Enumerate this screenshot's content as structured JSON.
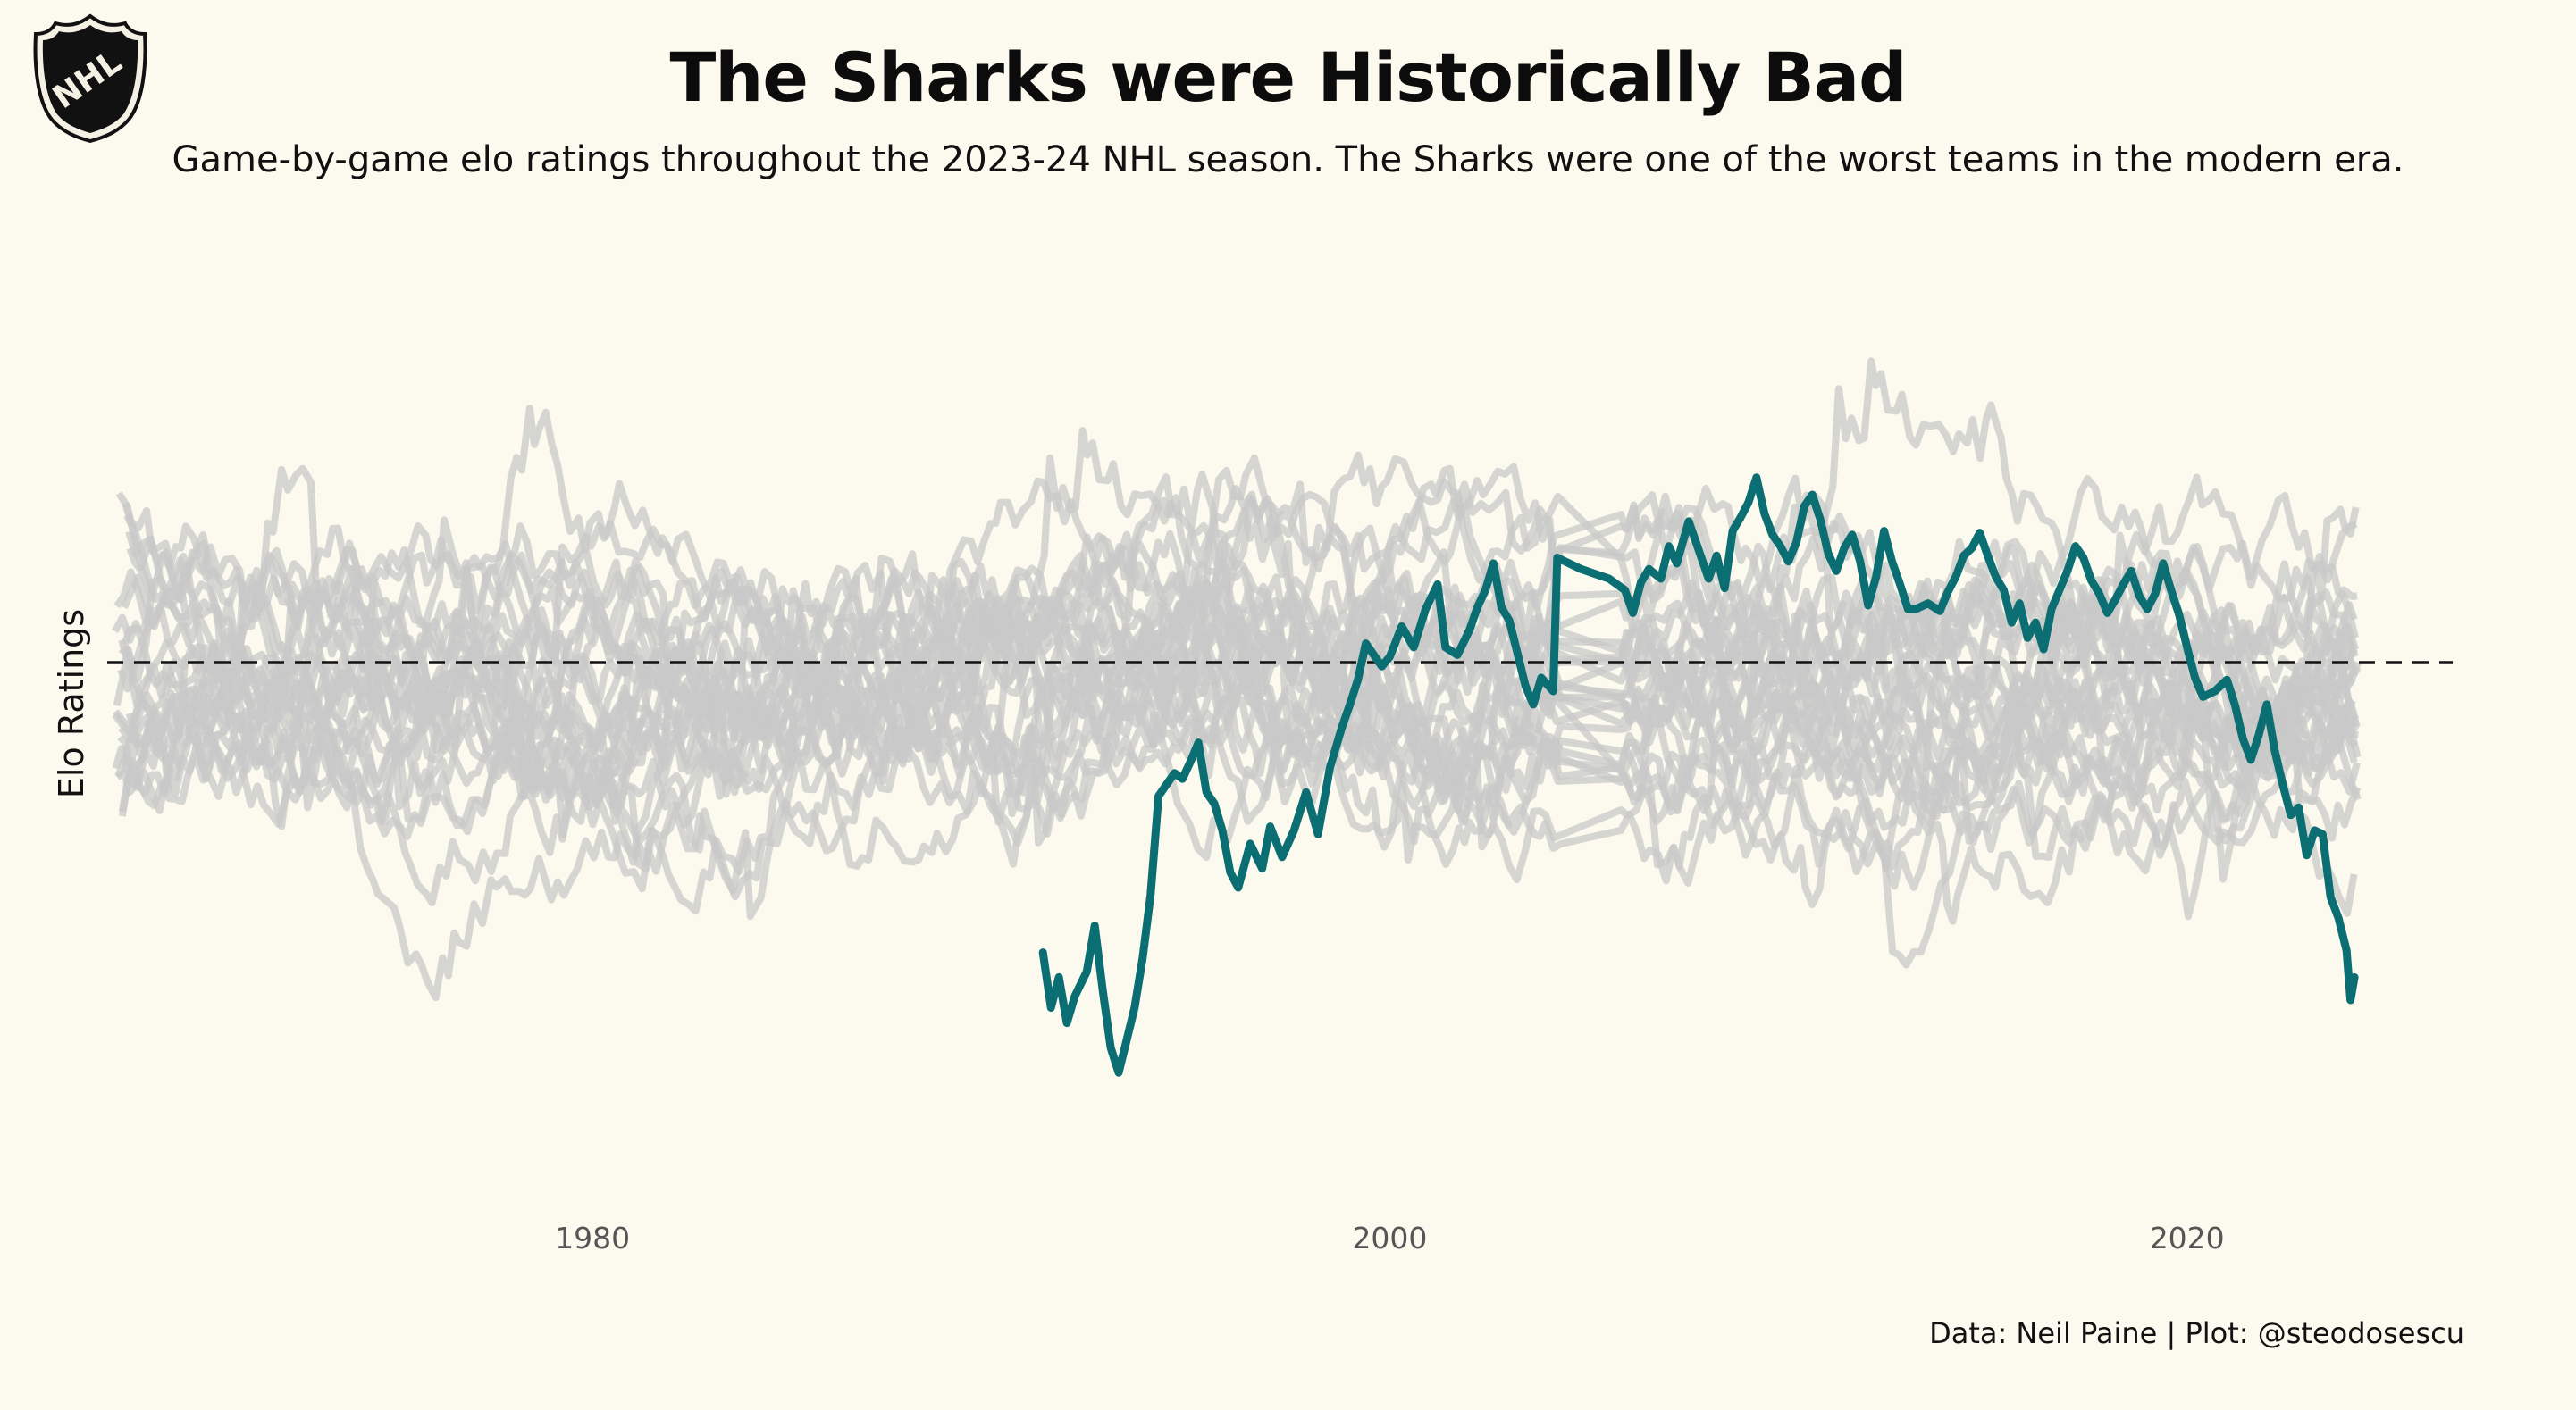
{
  "header": {
    "title": "The Sharks were Historically Bad",
    "subtitle": "Game-by-game elo ratings throughout the 2023-24 NHL season. The Sharks were one of the worst teams in the modern era.",
    "logo_icon": "nhl-shield-icon",
    "logo_text": "NHL"
  },
  "caption": "Data: Neil Paine | Plot: @steodosescu",
  "colors": {
    "background": "#fcf9ef",
    "highlight": "#0b6e73",
    "other_teams": "#c8c8c8",
    "reference_line": "#111111"
  },
  "chart_data": {
    "type": "line",
    "title": "The Sharks were Historically Bad",
    "xlabel": "",
    "ylabel": "Elo Ratings",
    "xlim": [
      1968.5,
      2027
    ],
    "ylim": [
      1220,
      1735
    ],
    "x_ticks": [
      "1980",
      "2000",
      "2020"
    ],
    "x_tick_values": [
      1980,
      2000,
      2020
    ],
    "y_ticks_visible": false,
    "grid": false,
    "reference_line": {
      "y": 1500,
      "style": "dashed"
    },
    "highlight_series": {
      "name": "San Jose Sharks",
      "points": [
        [
          1991.3,
          1348
        ],
        [
          1991.5,
          1319
        ],
        [
          1991.7,
          1335
        ],
        [
          1991.9,
          1311
        ],
        [
          1992.1,
          1325
        ],
        [
          1992.4,
          1338
        ],
        [
          1992.6,
          1362
        ],
        [
          1992.8,
          1328
        ],
        [
          1993.0,
          1298
        ],
        [
          1993.2,
          1285
        ],
        [
          1993.4,
          1302
        ],
        [
          1993.6,
          1319
        ],
        [
          1993.8,
          1345
        ],
        [
          1994.0,
          1378
        ],
        [
          1994.2,
          1430
        ],
        [
          1994.4,
          1436
        ],
        [
          1994.6,
          1442
        ],
        [
          1994.8,
          1439
        ],
        [
          1995.0,
          1448
        ],
        [
          1995.2,
          1458
        ],
        [
          1995.4,
          1432
        ],
        [
          1995.6,
          1426
        ],
        [
          1995.8,
          1412
        ],
        [
          1996.0,
          1390
        ],
        [
          1996.2,
          1382
        ],
        [
          1996.5,
          1405
        ],
        [
          1996.8,
          1392
        ],
        [
          1997.0,
          1414
        ],
        [
          1997.3,
          1398
        ],
        [
          1997.6,
          1412
        ],
        [
          1997.9,
          1432
        ],
        [
          1998.2,
          1410
        ],
        [
          1998.5,
          1445
        ],
        [
          1998.8,
          1466
        ],
        [
          1999.0,
          1478
        ],
        [
          1999.2,
          1491
        ],
        [
          1999.4,
          1510
        ],
        [
          1999.6,
          1504
        ],
        [
          1999.8,
          1498
        ],
        [
          2000.0,
          1503
        ],
        [
          2000.3,
          1519
        ],
        [
          2000.6,
          1508
        ],
        [
          2000.9,
          1528
        ],
        [
          2001.2,
          1541
        ],
        [
          2001.4,
          1508
        ],
        [
          2001.7,
          1504
        ],
        [
          2002.0,
          1517
        ],
        [
          2002.2,
          1529
        ],
        [
          2002.4,
          1538
        ],
        [
          2002.6,
          1552
        ],
        [
          2002.8,
          1529
        ],
        [
          2003.0,
          1522
        ],
        [
          2003.2,
          1505
        ],
        [
          2003.4,
          1488
        ],
        [
          2003.6,
          1478
        ],
        [
          2003.8,
          1492
        ],
        [
          2004.1,
          1485
        ],
        [
          2004.2,
          1555
        ],
        [
          2004.8,
          1549
        ],
        [
          2005.5,
          1544
        ],
        [
          2005.9,
          1538
        ],
        [
          2006.1,
          1526
        ],
        [
          2006.3,
          1542
        ],
        [
          2006.5,
          1549
        ],
        [
          2006.8,
          1544
        ],
        [
          2007.0,
          1561
        ],
        [
          2007.2,
          1552
        ],
        [
          2007.5,
          1574
        ],
        [
          2007.7,
          1562
        ],
        [
          2008.0,
          1544
        ],
        [
          2008.2,
          1556
        ],
        [
          2008.4,
          1539
        ],
        [
          2008.6,
          1569
        ],
        [
          2008.8,
          1576
        ],
        [
          2009.0,
          1584
        ],
        [
          2009.2,
          1597
        ],
        [
          2009.4,
          1578
        ],
        [
          2009.6,
          1567
        ],
        [
          2009.8,
          1561
        ],
        [
          2010.0,
          1553
        ],
        [
          2010.2,
          1563
        ],
        [
          2010.4,
          1582
        ],
        [
          2010.6,
          1588
        ],
        [
          2010.8,
          1575
        ],
        [
          2011.0,
          1557
        ],
        [
          2011.2,
          1548
        ],
        [
          2011.4,
          1560
        ],
        [
          2011.6,
          1567
        ],
        [
          2011.8,
          1553
        ],
        [
          2012.0,
          1530
        ],
        [
          2012.2,
          1545
        ],
        [
          2012.4,
          1569
        ],
        [
          2012.6,
          1553
        ],
        [
          2012.8,
          1541
        ],
        [
          2013.0,
          1528
        ],
        [
          2013.2,
          1528
        ],
        [
          2013.5,
          1531
        ],
        [
          2013.8,
          1527
        ],
        [
          2014.0,
          1537
        ],
        [
          2014.2,
          1545
        ],
        [
          2014.4,
          1556
        ],
        [
          2014.6,
          1560
        ],
        [
          2014.8,
          1568
        ],
        [
          2015.0,
          1556
        ],
        [
          2015.2,
          1545
        ],
        [
          2015.4,
          1538
        ],
        [
          2015.6,
          1521
        ],
        [
          2015.8,
          1531
        ],
        [
          2016.0,
          1513
        ],
        [
          2016.2,
          1521
        ],
        [
          2016.4,
          1507
        ],
        [
          2016.6,
          1528
        ],
        [
          2016.8,
          1538
        ],
        [
          2017.0,
          1548
        ],
        [
          2017.2,
          1561
        ],
        [
          2017.4,
          1555
        ],
        [
          2017.6,
          1543
        ],
        [
          2017.8,
          1536
        ],
        [
          2018.0,
          1526
        ],
        [
          2018.2,
          1533
        ],
        [
          2018.4,
          1541
        ],
        [
          2018.6,
          1548
        ],
        [
          2018.8,
          1535
        ],
        [
          2019.0,
          1528
        ],
        [
          2019.2,
          1536
        ],
        [
          2019.4,
          1552
        ],
        [
          2019.6,
          1538
        ],
        [
          2019.8,
          1525
        ],
        [
          2020.0,
          1508
        ],
        [
          2020.2,
          1492
        ],
        [
          2020.4,
          1482
        ],
        [
          2020.7,
          1485
        ],
        [
          2021.0,
          1491
        ],
        [
          2021.2,
          1478
        ],
        [
          2021.4,
          1460
        ],
        [
          2021.6,
          1449
        ],
        [
          2021.8,
          1462
        ],
        [
          2022.0,
          1478
        ],
        [
          2022.2,
          1454
        ],
        [
          2022.4,
          1436
        ],
        [
          2022.6,
          1420
        ],
        [
          2022.8,
          1424
        ],
        [
          2023.0,
          1399
        ],
        [
          2023.2,
          1412
        ],
        [
          2023.4,
          1410
        ],
        [
          2023.6,
          1377
        ],
        [
          2023.8,
          1366
        ],
        [
          2024.0,
          1349
        ],
        [
          2024.1,
          1323
        ],
        [
          2024.2,
          1335
        ]
      ]
    },
    "background_series_count": 30,
    "background_series_note": "Other NHL teams shown as light grey lines"
  }
}
